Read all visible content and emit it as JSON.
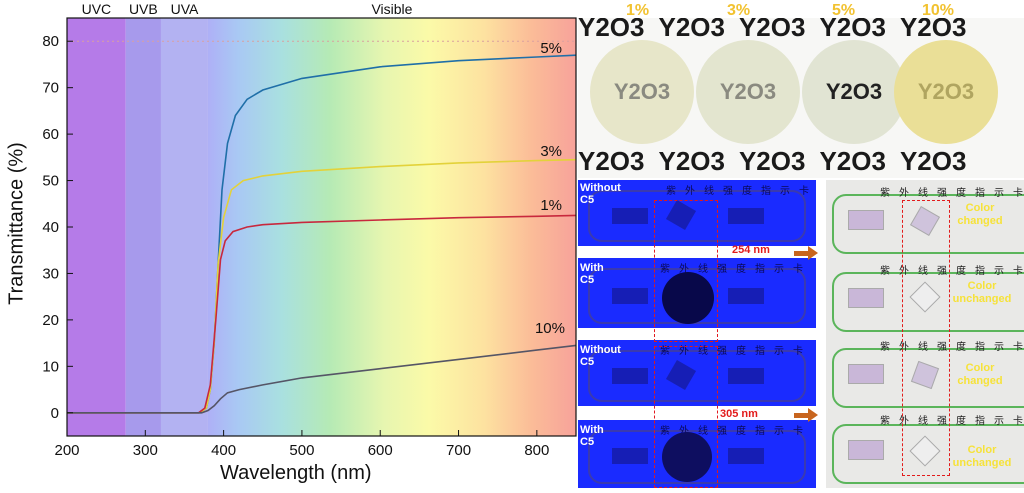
{
  "chart_data": {
    "type": "line",
    "xlabel": "Wavelength (nm)",
    "ylabel": "Transmittance (%)",
    "xlim": [
      200,
      850
    ],
    "ylim": [
      -5,
      85
    ],
    "xticks": [
      200,
      300,
      400,
      500,
      600,
      700,
      800
    ],
    "yticks": [
      0,
      10,
      20,
      30,
      40,
      50,
      60,
      70,
      80
    ],
    "grid": false,
    "regions": [
      {
        "label": "UVC",
        "from": 200,
        "to": 275,
        "color": "#b57be8"
      },
      {
        "label": "UVB",
        "from": 275,
        "to": 320,
        "color": "#a79aec"
      },
      {
        "label": "UVA",
        "from": 320,
        "to": 380,
        "color": "#b3b2f2"
      },
      {
        "label": "Visible",
        "from": 380,
        "to": 850,
        "color": "spectrum"
      }
    ],
    "series": [
      {
        "name": "5%",
        "color": "#1f6fa8",
        "x": [
          200,
          370,
          378,
          383,
          388,
          393,
          398,
          405,
          415,
          430,
          450,
          500,
          600,
          700,
          800,
          850
        ],
        "y": [
          0,
          0,
          1,
          5,
          15,
          32,
          48,
          58,
          64,
          67.5,
          69.5,
          72,
          74.5,
          75.8,
          76.6,
          77
        ]
      },
      {
        "name": "3%",
        "color": "#e3d23a",
        "x": [
          200,
          370,
          378,
          383,
          388,
          393,
          400,
          410,
          425,
          450,
          500,
          600,
          700,
          800,
          850
        ],
        "y": [
          0,
          0,
          1,
          5,
          15,
          32,
          42,
          48,
          50,
          51,
          52,
          53,
          53.8,
          54.3,
          54.5
        ]
      },
      {
        "name": "1%",
        "color": "#c8283d",
        "x": [
          200,
          368,
          376,
          383,
          390,
          396,
          402,
          412,
          430,
          450,
          500,
          600,
          700,
          800,
          850
        ],
        "y": [
          0,
          0,
          1,
          6,
          20,
          33,
          37,
          39,
          40,
          40.5,
          41,
          41.5,
          42,
          42.3,
          42.5
        ]
      },
      {
        "name": "10%",
        "color": "#555566",
        "x": [
          200,
          372,
          380,
          388,
          396,
          405,
          420,
          450,
          500,
          600,
          700,
          800,
          850
        ],
        "y": [
          0,
          0,
          0.5,
          1.5,
          3,
          4.3,
          5,
          6,
          7.5,
          9.5,
          11.5,
          13.5,
          14.5
        ]
      }
    ],
    "series_labels": [
      "5%",
      "3%",
      "1%",
      "10%"
    ]
  },
  "photo_discs": {
    "percent_labels": [
      "1%",
      "3%",
      "5%",
      "10%"
    ],
    "background_text": "Y2O3",
    "discs": [
      {
        "color": "#e7e6c9"
      },
      {
        "color": "#e3e5cf"
      },
      {
        "color": "#e1e4d3"
      },
      {
        "color": "#eadf97"
      }
    ]
  },
  "uv_panels": {
    "left_labels": [
      "Without C5",
      "With C5",
      "Without C5",
      "With C5"
    ],
    "card_title": "紫外线强度指示卡",
    "wavelength_labels": [
      "254 nm",
      "305 nm"
    ],
    "result_labels": [
      "Color changed",
      "Color unchanged",
      "Color changed",
      "Color unchanged"
    ]
  }
}
